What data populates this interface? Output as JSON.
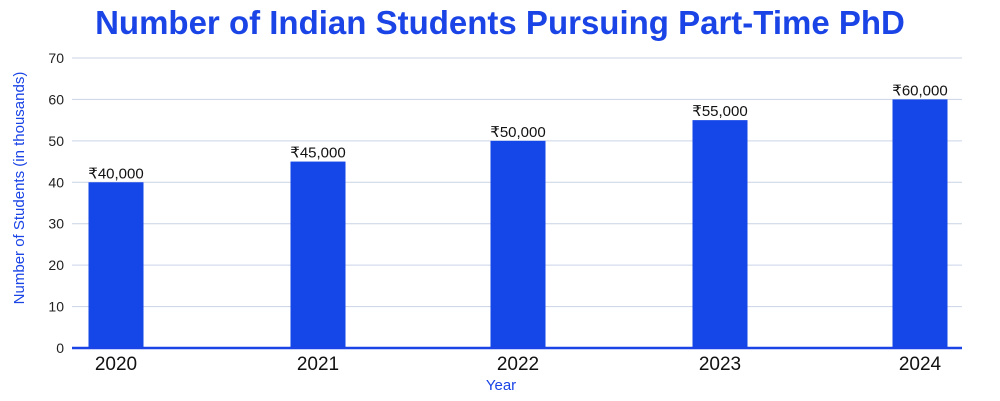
{
  "chart_data": {
    "type": "bar",
    "title": "Number of Indian Students Pursuing Part-Time PhD",
    "xlabel": "Year",
    "ylabel": "Number of Students (in thousands)",
    "categories": [
      "2020",
      "2021",
      "2022",
      "2023",
      "2024"
    ],
    "values": [
      40,
      45,
      50,
      55,
      60
    ],
    "data_labels": [
      "₹40,000",
      "₹45,000",
      "₹50,000",
      "₹55,000",
      "₹60,000"
    ],
    "ylim": [
      0,
      70
    ],
    "yticks": [
      "0",
      "10",
      "20",
      "30",
      "40",
      "50",
      "60",
      "70"
    ],
    "grid": true,
    "legend": "none",
    "bar_color": "#1446e8",
    "title_color": "#1a44e6",
    "grid_color": "#c9d3e6",
    "axis_color": "#1a44e6"
  }
}
